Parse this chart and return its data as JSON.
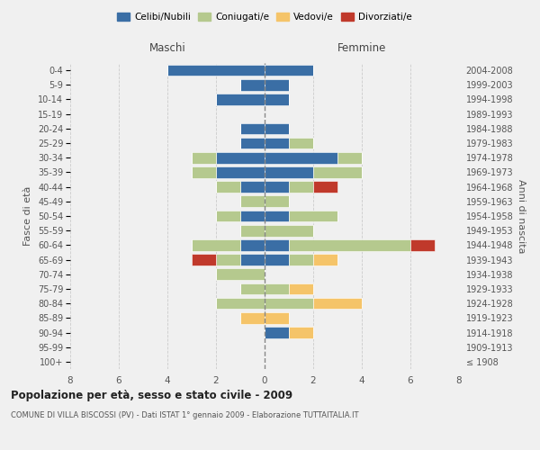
{
  "age_groups": [
    "100+",
    "95-99",
    "90-94",
    "85-89",
    "80-84",
    "75-79",
    "70-74",
    "65-69",
    "60-64",
    "55-59",
    "50-54",
    "45-49",
    "40-44",
    "35-39",
    "30-34",
    "25-29",
    "20-24",
    "15-19",
    "10-14",
    "5-9",
    "0-4"
  ],
  "birth_years": [
    "≤ 1908",
    "1909-1913",
    "1914-1918",
    "1919-1923",
    "1924-1928",
    "1929-1933",
    "1934-1938",
    "1939-1943",
    "1944-1948",
    "1949-1953",
    "1954-1958",
    "1959-1963",
    "1964-1968",
    "1969-1973",
    "1974-1978",
    "1979-1983",
    "1984-1988",
    "1989-1993",
    "1994-1998",
    "1999-2003",
    "2004-2008"
  ],
  "colors": {
    "celibi": "#3a6ea5",
    "coniugati": "#b5c98e",
    "vedovi": "#f5c469",
    "divorziati": "#c0392b"
  },
  "maschi": {
    "celibi": [
      0,
      0,
      0,
      0,
      0,
      0,
      0,
      1,
      1,
      0,
      1,
      0,
      1,
      2,
      2,
      1,
      1,
      0,
      2,
      1,
      4
    ],
    "coniugati": [
      0,
      0,
      0,
      0,
      2,
      1,
      2,
      1,
      2,
      1,
      1,
      1,
      1,
      1,
      1,
      0,
      0,
      0,
      0,
      0,
      0
    ],
    "vedovi": [
      0,
      0,
      0,
      1,
      0,
      0,
      0,
      0,
      0,
      0,
      0,
      0,
      0,
      0,
      0,
      0,
      0,
      0,
      0,
      0,
      0
    ],
    "divorziati": [
      0,
      0,
      0,
      0,
      0,
      0,
      0,
      1,
      0,
      0,
      0,
      0,
      0,
      0,
      0,
      0,
      0,
      0,
      0,
      0,
      0
    ]
  },
  "femmine": {
    "celibi": [
      0,
      0,
      1,
      0,
      0,
      0,
      0,
      1,
      1,
      0,
      1,
      0,
      1,
      2,
      3,
      1,
      1,
      0,
      1,
      1,
      2
    ],
    "coniugati": [
      0,
      0,
      0,
      0,
      2,
      1,
      0,
      1,
      5,
      2,
      2,
      1,
      1,
      2,
      1,
      1,
      0,
      0,
      0,
      0,
      0
    ],
    "vedovi": [
      0,
      0,
      1,
      1,
      2,
      1,
      0,
      1,
      0,
      0,
      0,
      0,
      0,
      0,
      0,
      0,
      0,
      0,
      0,
      0,
      0
    ],
    "divorziati": [
      0,
      0,
      0,
      0,
      0,
      0,
      0,
      0,
      1,
      0,
      0,
      0,
      1,
      0,
      0,
      0,
      0,
      0,
      0,
      0,
      0
    ]
  },
  "xlim": 8,
  "title": "Popolazione per età, sesso e stato civile - 2009",
  "subtitle": "COMUNE DI VILLA BISCOSSI (PV) - Dati ISTAT 1° gennaio 2009 - Elaborazione TUTTAITALIA.IT",
  "ylabel_left": "Fasce di età",
  "ylabel_right": "Anni di nascita",
  "xlabel_maschi": "Maschi",
  "xlabel_femmine": "Femmine",
  "legend_labels": [
    "Celibi/Nubili",
    "Coniugati/e",
    "Vedovi/e",
    "Divorziati/e"
  ],
  "bg_color": "#f0f0f0"
}
